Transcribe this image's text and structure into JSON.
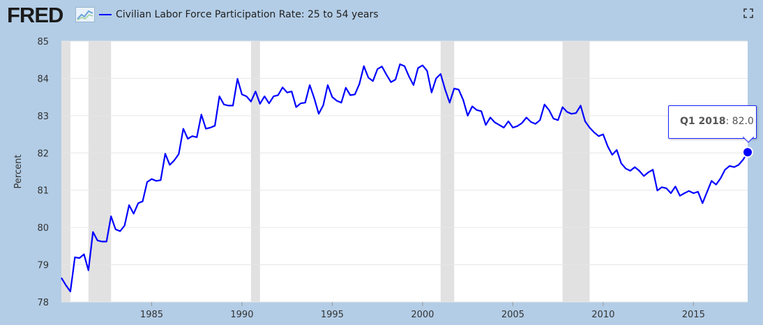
{
  "header": {
    "logo_text": "FRED",
    "series_label": "Civilian Labor Force Participation Rate: 25 to 54 years"
  },
  "icons": {
    "logo_mark": "line-graph-icon",
    "expand": "expand-icon"
  },
  "colors": {
    "line": "#0000ff",
    "recession": "#e1e1e1",
    "background": "#b3cde6",
    "plot": "#ffffff"
  },
  "tooltip": {
    "period": "Q1 2018",
    "value": "82.0"
  },
  "chart_data": {
    "type": "line",
    "title": "Civilian Labor Force Participation Rate: 25 to 54 years",
    "xlabel": "",
    "ylabel": "Percent",
    "frequency": "quarterly",
    "xlim": [
      1980.0,
      2018.0
    ],
    "ylim": [
      78,
      85
    ],
    "yticks": [
      78,
      79,
      80,
      81,
      82,
      83,
      84,
      85
    ],
    "xticks": [
      1985,
      1990,
      1995,
      2000,
      2005,
      2010,
      2015
    ],
    "grid": true,
    "recessions": [
      [
        1980.0,
        1980.5
      ],
      [
        1981.5,
        1982.75
      ],
      [
        1990.5,
        1991.0
      ],
      [
        2001.0,
        2001.75
      ],
      [
        2007.75,
        2009.25
      ]
    ],
    "series": [
      {
        "name": "Civilian Labor Force Participation Rate: 25 to 54 years",
        "start": "Q1 1980",
        "values": [
          78.65,
          78.45,
          78.28,
          79.2,
          79.18,
          79.28,
          78.85,
          79.88,
          79.65,
          79.62,
          79.62,
          80.3,
          79.95,
          79.9,
          80.05,
          80.6,
          80.37,
          80.65,
          80.7,
          81.22,
          81.3,
          81.25,
          81.27,
          81.98,
          81.68,
          81.8,
          81.97,
          82.65,
          82.38,
          82.45,
          82.42,
          83.03,
          82.65,
          82.68,
          82.73,
          83.52,
          83.3,
          83.27,
          83.27,
          83.99,
          83.57,
          83.52,
          83.38,
          83.65,
          83.32,
          83.52,
          83.33,
          83.52,
          83.55,
          83.76,
          83.62,
          83.65,
          83.23,
          83.33,
          83.35,
          83.82,
          83.47,
          83.05,
          83.28,
          83.82,
          83.5,
          83.4,
          83.35,
          83.75,
          83.55,
          83.57,
          83.85,
          84.33,
          84.02,
          83.93,
          84.25,
          84.32,
          84.1,
          83.9,
          83.97,
          84.38,
          84.33,
          84.05,
          83.82,
          84.28,
          84.35,
          84.2,
          83.62,
          84.0,
          84.12,
          83.7,
          83.35,
          83.73,
          83.7,
          83.42,
          83.0,
          83.25,
          83.15,
          83.12,
          82.75,
          82.95,
          82.82,
          82.75,
          82.68,
          82.85,
          82.68,
          82.72,
          82.8,
          82.95,
          82.83,
          82.78,
          82.88,
          83.3,
          83.15,
          82.92,
          82.88,
          83.23,
          83.1,
          83.05,
          83.07,
          83.27,
          82.85,
          82.68,
          82.55,
          82.45,
          82.5,
          82.18,
          81.95,
          82.08,
          81.72,
          81.58,
          81.52,
          81.62,
          81.52,
          81.38,
          81.48,
          81.55,
          80.99,
          81.08,
          81.05,
          80.92,
          81.1,
          80.85,
          80.92,
          80.98,
          80.92,
          80.96,
          80.65,
          80.95,
          81.25,
          81.15,
          81.32,
          81.55,
          81.65,
          81.62,
          81.68,
          81.82,
          82.02
        ]
      }
    ]
  }
}
